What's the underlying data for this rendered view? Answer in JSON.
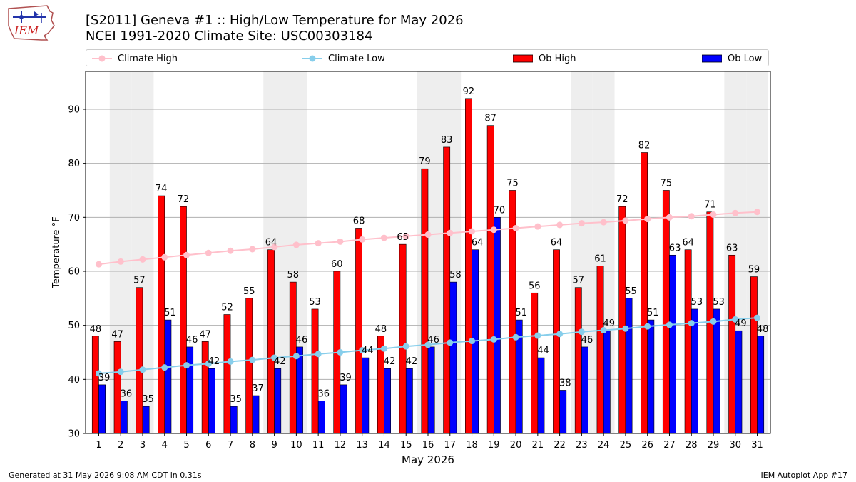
{
  "header": {
    "logo_text": "IEM",
    "title_line1": "[S2011] Geneva #1 :: High/Low Temperature for May 2026",
    "title_line2": "NCEI 1991-2020 Climate Site: USC00303184"
  },
  "legend": {
    "items": [
      {
        "label": "Climate High",
        "kind": "line",
        "color": "#ffc0cb"
      },
      {
        "label": "Climate Low",
        "kind": "line",
        "color": "#87ceeb"
      },
      {
        "label": "Ob High",
        "kind": "bar",
        "color": "#ff0000"
      },
      {
        "label": "Ob Low",
        "kind": "bar",
        "color": "#0000ff"
      }
    ]
  },
  "chart_data": {
    "type": "bar",
    "categories": [
      "1",
      "2",
      "3",
      "4",
      "5",
      "6",
      "7",
      "8",
      "9",
      "10",
      "11",
      "12",
      "13",
      "14",
      "15",
      "16",
      "17",
      "18",
      "19",
      "20",
      "21",
      "22",
      "23",
      "24",
      "25",
      "26",
      "27",
      "28",
      "29",
      "30",
      "31"
    ],
    "xlabel": "May 2026",
    "ylabel": "Temperature °F",
    "ylim": [
      30,
      97
    ],
    "yticks": [
      30,
      40,
      50,
      60,
      70,
      80,
      90
    ],
    "grid": "horizontal",
    "weekend_shading_days": [
      2,
      3,
      9,
      10,
      16,
      17,
      23,
      24,
      30,
      31
    ],
    "shade_color": "#eeeeee",
    "series": [
      {
        "name": "Ob High",
        "type": "bar",
        "color": "#ff0000",
        "values": [
          48,
          47,
          57,
          74,
          72,
          47,
          52,
          55,
          64,
          58,
          53,
          60,
          68,
          48,
          65,
          79,
          83,
          92,
          87,
          75,
          56,
          64,
          57,
          61,
          72,
          82,
          75,
          64,
          71,
          63,
          59
        ]
      },
      {
        "name": "Ob Low",
        "type": "bar",
        "color": "#0000ff",
        "values": [
          39,
          36,
          35,
          51,
          46,
          42,
          35,
          37,
          42,
          46,
          36,
          39,
          44,
          42,
          42,
          46,
          58,
          64,
          70,
          51,
          44,
          38,
          46,
          49,
          55,
          51,
          63,
          53,
          53,
          49,
          48
        ]
      },
      {
        "name": "Climate High",
        "type": "line",
        "color": "#ffc0cb",
        "values": [
          61.3,
          61.8,
          62.2,
          62.6,
          63.0,
          63.4,
          63.8,
          64.1,
          64.5,
          64.9,
          65.2,
          65.5,
          65.9,
          66.2,
          66.5,
          66.8,
          67.1,
          67.4,
          67.7,
          68.0,
          68.3,
          68.6,
          68.9,
          69.1,
          69.4,
          69.7,
          70.0,
          70.2,
          70.5,
          70.8,
          71.0
        ]
      },
      {
        "name": "Climate Low",
        "type": "line",
        "color": "#87ceeb",
        "values": [
          41.1,
          41.4,
          41.8,
          42.2,
          42.6,
          42.9,
          43.3,
          43.6,
          44.0,
          44.3,
          44.7,
          45.0,
          45.4,
          45.7,
          46.1,
          46.4,
          46.8,
          47.1,
          47.4,
          47.8,
          48.1,
          48.4,
          48.8,
          49.1,
          49.4,
          49.8,
          50.1,
          50.4,
          50.7,
          51.1,
          51.4
        ]
      }
    ]
  },
  "footer": {
    "left": "Generated at 31 May 2026 9:08 AM CDT in 0.31s",
    "right": "IEM Autoplot App #17"
  }
}
